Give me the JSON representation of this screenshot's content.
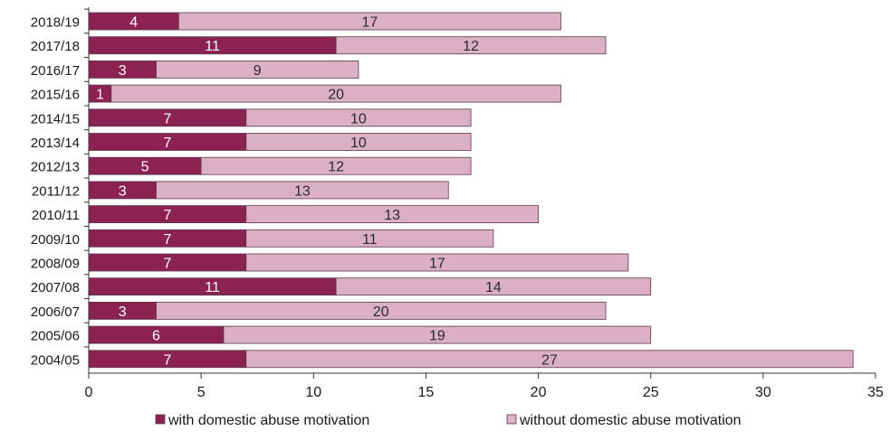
{
  "chart_data": {
    "type": "bar",
    "orientation": "horizontal",
    "stacked": true,
    "categories": [
      "2018/19",
      "2017/18",
      "2016/17",
      "2015/16",
      "2014/15",
      "2013/14",
      "2012/13",
      "2011/12",
      "2010/11",
      "2009/10",
      "2008/09",
      "2007/08",
      "2006/07",
      "2005/06",
      "2004/05"
    ],
    "series": [
      {
        "name": "with domestic abuse motivation",
        "color": "#8b2252",
        "values": [
          4,
          11,
          3,
          1,
          7,
          7,
          5,
          3,
          7,
          7,
          7,
          11,
          3,
          6,
          7
        ]
      },
      {
        "name": "without domestic abuse motivation",
        "color": "#dcb0c4",
        "values": [
          17,
          12,
          9,
          20,
          10,
          10,
          12,
          13,
          13,
          11,
          17,
          14,
          20,
          19,
          27
        ]
      }
    ],
    "xlim": [
      0,
      35
    ],
    "xticks": [
      0,
      5,
      10,
      15,
      20,
      25,
      30,
      35
    ],
    "legend_position": "bottom",
    "grid": false,
    "title": "",
    "xlabel": "",
    "ylabel": ""
  }
}
